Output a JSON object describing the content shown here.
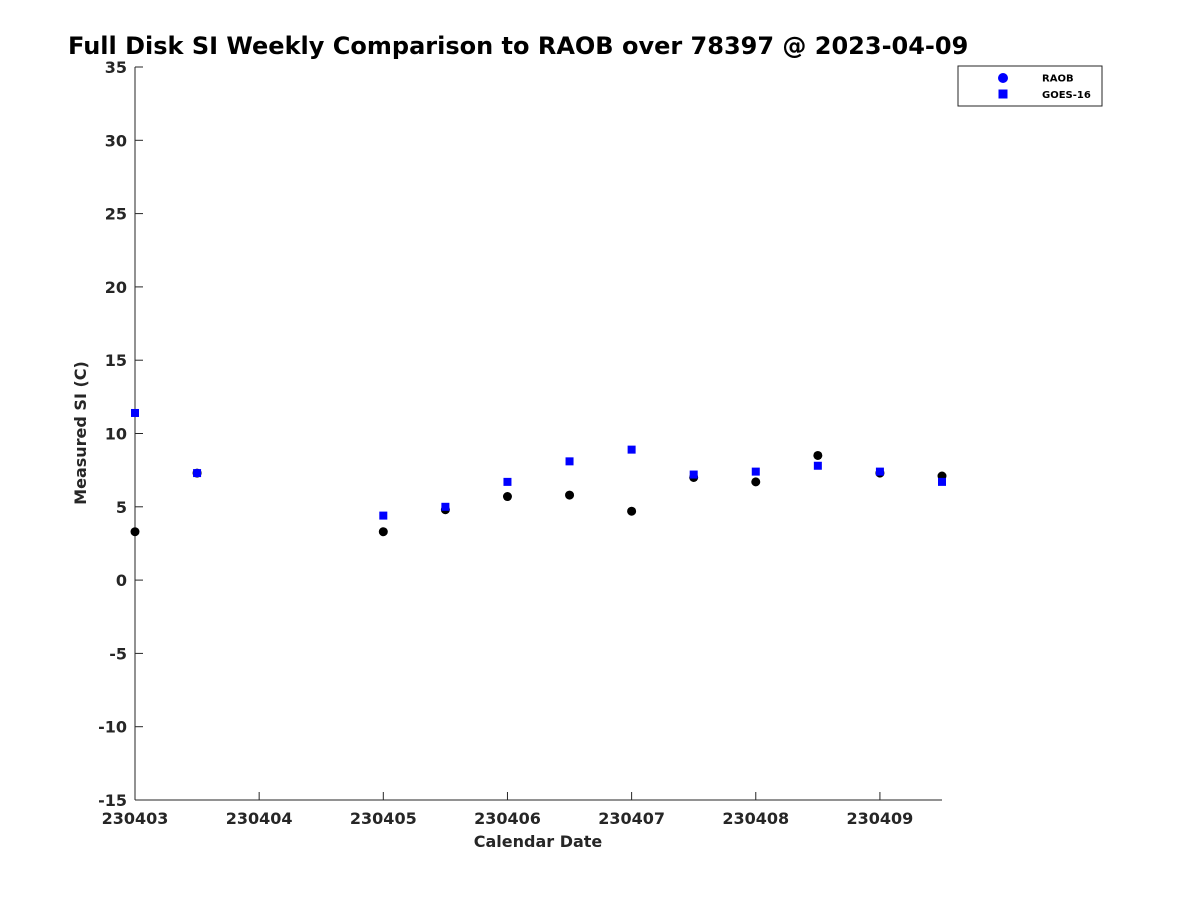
{
  "chart_data": {
    "type": "scatter",
    "title": "Full Disk SI Weekly Comparison to RAOB over 78397 @ 2023-04-09",
    "xlabel": "Calendar Date",
    "ylabel": "Measured SI (C)",
    "xlim": [
      230403,
      230409.5
    ],
    "ylim": [
      -15,
      35
    ],
    "xticks": [
      "230403",
      "230404",
      "230405",
      "230406",
      "230407",
      "230408",
      "230409"
    ],
    "yticks": [
      35,
      30,
      25,
      20,
      15,
      10,
      5,
      0,
      -5,
      -10,
      -15
    ],
    "grid": false,
    "legend_position": "top-right",
    "series": [
      {
        "name": "RAOB",
        "marker": "circle",
        "color": "#000000",
        "legend_color": "#0000ff",
        "points": [
          {
            "x": 230403.0,
            "y": 3.3
          },
          {
            "x": 230403.5,
            "y": 7.3
          },
          {
            "x": 230405.0,
            "y": 3.3
          },
          {
            "x": 230405.5,
            "y": 4.8
          },
          {
            "x": 230406.0,
            "y": 5.7
          },
          {
            "x": 230406.5,
            "y": 5.8
          },
          {
            "x": 230407.0,
            "y": 4.7
          },
          {
            "x": 230407.5,
            "y": 7.0
          },
          {
            "x": 230408.0,
            "y": 6.7
          },
          {
            "x": 230408.5,
            "y": 8.5
          },
          {
            "x": 230409.0,
            "y": 7.3
          },
          {
            "x": 230409.5,
            "y": 7.1
          }
        ]
      },
      {
        "name": "GOES-16",
        "marker": "square",
        "color": "#0000ff",
        "legend_color": "#0000ff",
        "points": [
          {
            "x": 230403.0,
            "y": 11.4
          },
          {
            "x": 230403.5,
            "y": 7.3
          },
          {
            "x": 230405.0,
            "y": 4.4
          },
          {
            "x": 230405.5,
            "y": 5.0
          },
          {
            "x": 230406.0,
            "y": 6.7
          },
          {
            "x": 230406.5,
            "y": 8.1
          },
          {
            "x": 230407.0,
            "y": 8.9
          },
          {
            "x": 230407.5,
            "y": 7.2
          },
          {
            "x": 230408.0,
            "y": 7.4
          },
          {
            "x": 230408.5,
            "y": 7.8
          },
          {
            "x": 230409.0,
            "y": 7.4
          },
          {
            "x": 230409.5,
            "y": 6.7
          }
        ]
      }
    ]
  }
}
